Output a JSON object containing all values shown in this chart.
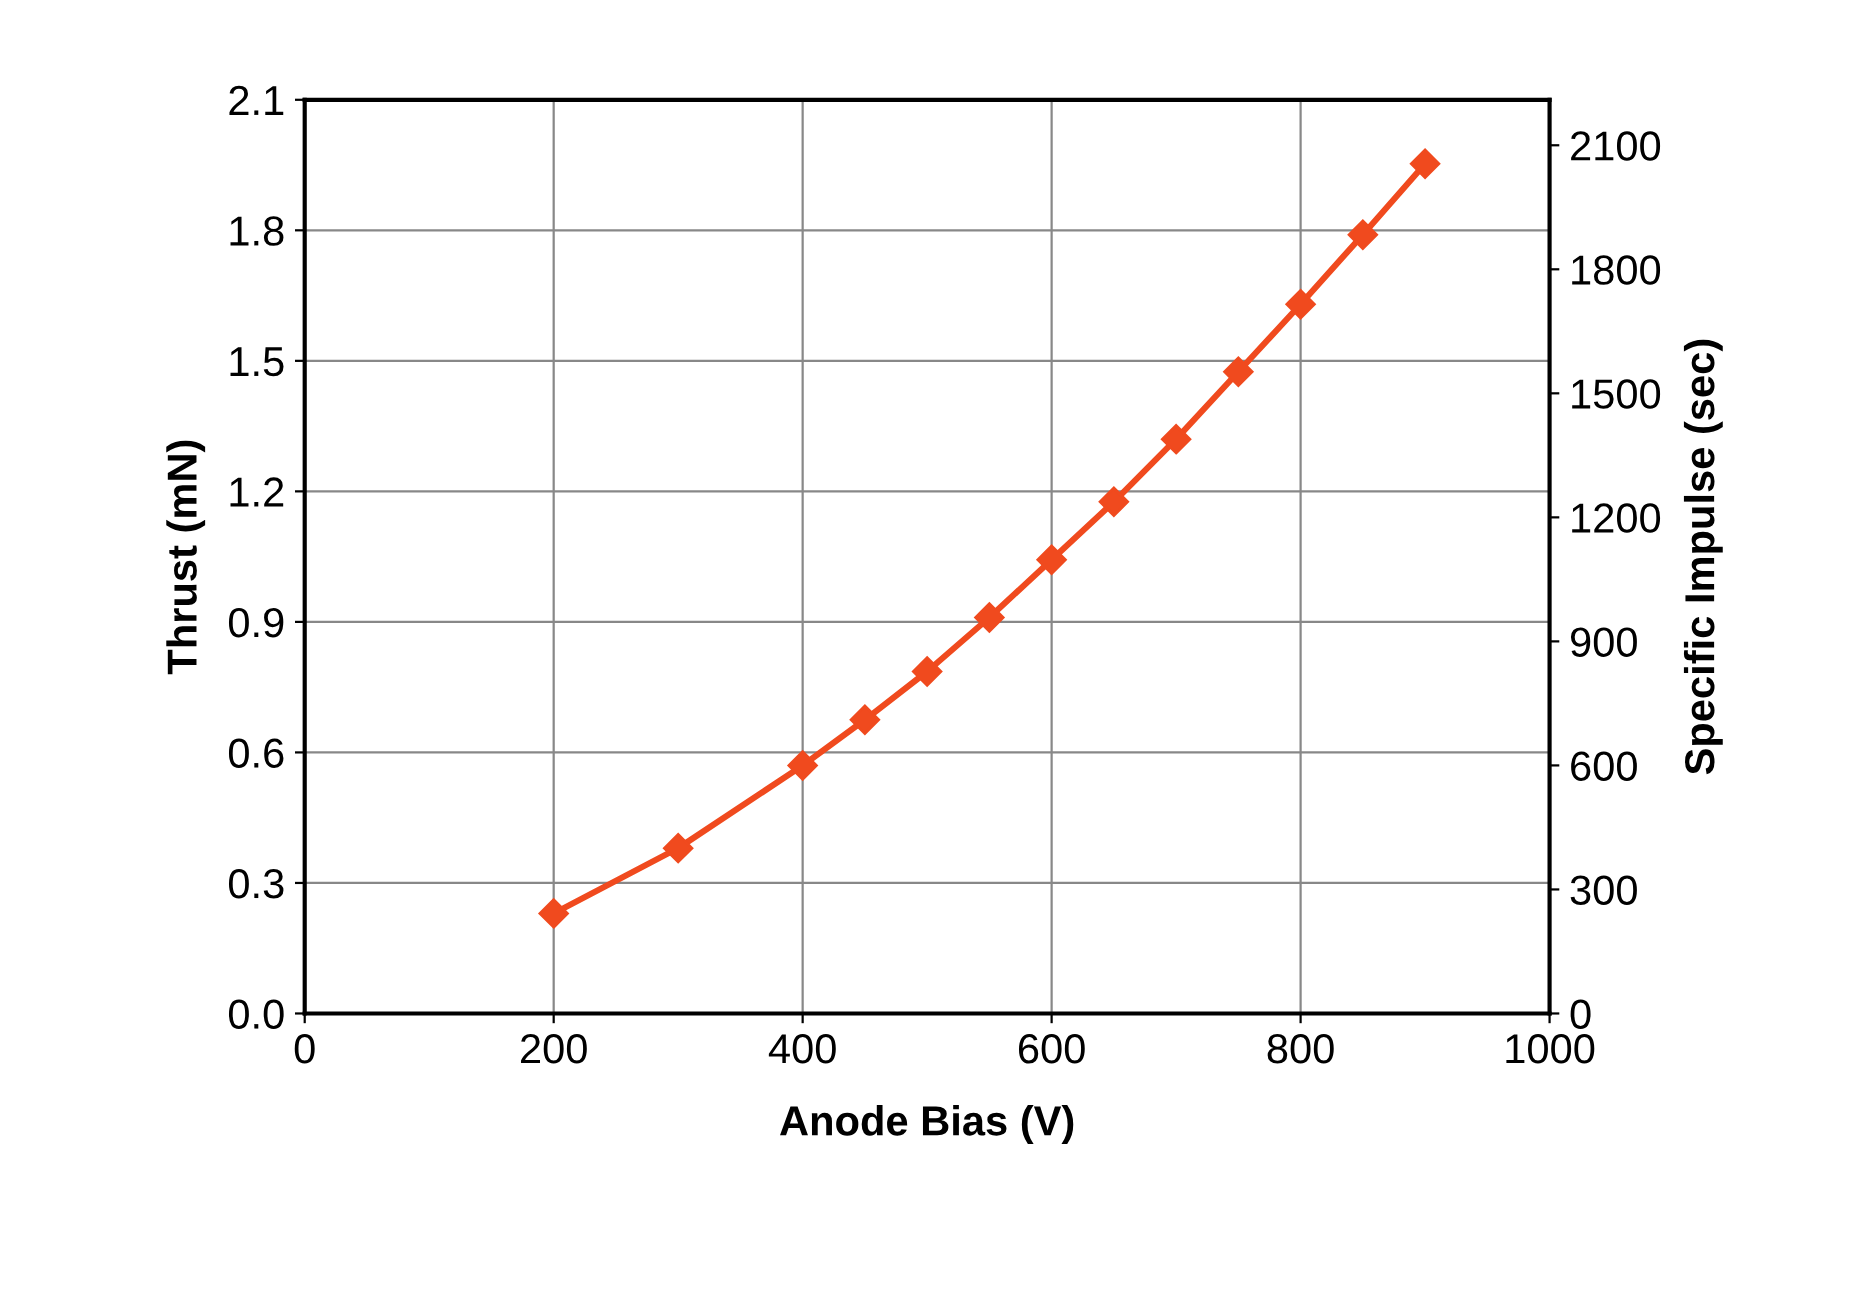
{
  "chart_data": {
    "type": "line",
    "xlabel": "Anode Bias (V)",
    "ylabel": "Thrust (mN)",
    "y2label": "Specific Impulse (sec)",
    "x": [
      200,
      300,
      400,
      450,
      500,
      550,
      600,
      650,
      700,
      750,
      800,
      850,
      900
    ],
    "series": [
      {
        "color": "#f04a1e",
        "values": [
          0.23,
          0.38,
          0.57,
          0.675,
          0.786,
          0.91,
          1.043,
          1.176,
          1.32,
          1.475,
          1.63,
          1.79,
          1.953
        ]
      }
    ],
    "xlim": [
      0,
      1000
    ],
    "xticks": [
      0,
      200,
      400,
      600,
      800,
      1000
    ],
    "ylim": [
      0,
      2.1
    ],
    "yticks": [
      {
        "value": 0,
        "label": "0.0"
      },
      0.3,
      0.6,
      0.9,
      1.2,
      1.5,
      1.8,
      2.1
    ],
    "y2lim": [
      0,
      2210
    ],
    "y2ticks": [
      0,
      300,
      600,
      900,
      1200,
      1500,
      1800,
      2100
    ],
    "grid": true,
    "marker": "diamond",
    "line_style": "solid",
    "legend": false
  }
}
